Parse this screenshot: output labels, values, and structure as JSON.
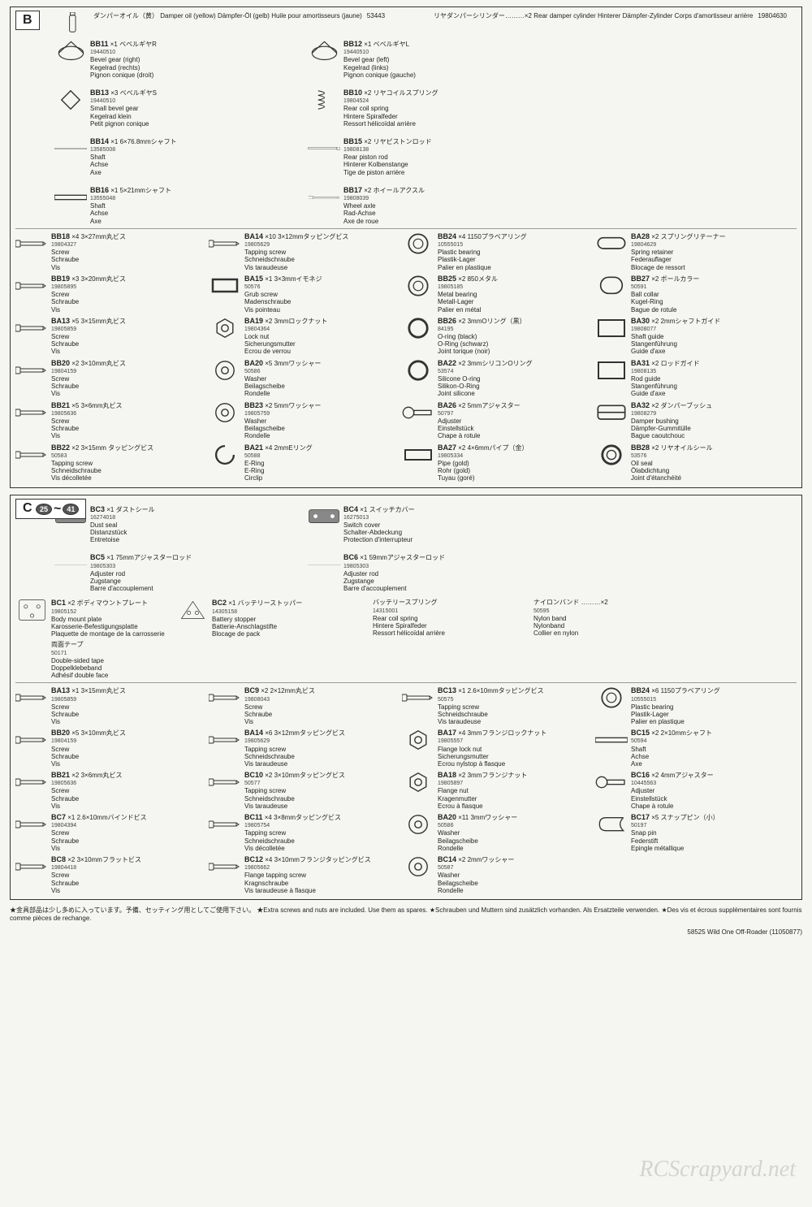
{
  "sectionB": {
    "label": "B",
    "header": {
      "oil": {
        "jp": "ダンパーオイル（黄）",
        "en": "Damper oil (yellow)",
        "de": "Dämpfer-Öl (gelb)",
        "fr": "Huile pour amortisseurs (jaune)",
        "num": "53443"
      },
      "cyl": {
        "jp": "リヤダンパーシリンダー………×2",
        "en": "Rear damper cylinder",
        "de": "Hinterer Dämpfer-Zylinder",
        "fr": "Corps d'amortisseur arrière",
        "num": "19804630"
      }
    },
    "top": [
      {
        "code": "BB11",
        "qty": "×1",
        "num": "19440510",
        "jp": "ベベルギヤR",
        "en": "Bevel gear (right)",
        "de": "Kegelrad (rechts)",
        "fr": "Pignon conique (droit)",
        "icon": "gear"
      },
      {
        "code": "BB12",
        "qty": "×1",
        "num": "19440510",
        "jp": "ベベルギヤL",
        "en": "Bevel gear (left)",
        "de": "Kegelrad (links)",
        "fr": "Pignon conique (gauche)",
        "icon": "gear"
      },
      {
        "code": "BB13",
        "qty": "×3",
        "num": "19440510",
        "jp": "ベベルギヤS",
        "en": "Small bevel gear",
        "de": "Kegelrad klein",
        "fr": "Petit pignon conique",
        "icon": "sgear"
      },
      {
        "code": "BB10",
        "qty": "×2",
        "num": "19804524",
        "jp": "リヤコイルスプリング",
        "en": "Rear coil spring",
        "de": "Hintere Spiralfeder",
        "fr": "Ressort hélicoïdal arrière",
        "icon": "spring"
      },
      {
        "code": "BB14",
        "qty": "×1",
        "num": "13585008",
        "jp": "6×76.8mmシャフト",
        "en": "Shaft",
        "de": "Achse",
        "fr": "Axe",
        "icon": "shaft"
      },
      {
        "code": "BB15",
        "qty": "×2",
        "num": "19808138",
        "jp": "リヤピストンロッド",
        "en": "Rear piston rod",
        "de": "Hinterer Kolbenstange",
        "fr": "Tige de piston arrière",
        "icon": "rod"
      },
      {
        "code": "BB16",
        "qty": "×1",
        "num": "13555048",
        "jp": "5×21mmシャフト",
        "en": "Shaft",
        "de": "Achse",
        "fr": "Axe",
        "icon": "sshaft"
      },
      {
        "code": "BB17",
        "qty": "×2",
        "num": "19808039",
        "jp": "ホイールアクスル",
        "en": "Wheel axle",
        "de": "Rad-Achse",
        "fr": "Axe de roue",
        "icon": "axle"
      }
    ],
    "rows": [
      {
        "code": "BB18",
        "qty": "×4",
        "num": "19804327",
        "jp": "3×27mm丸ビス",
        "en": "Screw",
        "de": "Schraube",
        "fr": "Vis",
        "icon": "screw"
      },
      {
        "code": "BA14",
        "qty": "×10",
        "num": "19805629",
        "jp": "3×12mmタッピングビス",
        "en": "Tapping screw",
        "de": "Schneidschraube",
        "fr": "Vis taraudeuse",
        "icon": "screw"
      },
      {
        "code": "BB24",
        "qty": "×4",
        "num": "10555015",
        "jp": "1150プラベアリング",
        "en": "Plastic bearing",
        "de": "Plastik-Lager",
        "fr": "Palier en plastique",
        "icon": "ring"
      },
      {
        "code": "BA28",
        "qty": "×2",
        "num": "19804629",
        "jp": "スプリングリテーナー",
        "en": "Spring retainer",
        "de": "Federauflager",
        "fr": "Blocage de ressort",
        "icon": "retainer"
      },
      {
        "code": "BB19",
        "qty": "×3",
        "num": "19805895",
        "jp": "3×20mm丸ビス",
        "en": "Screw",
        "de": "Schraube",
        "fr": "Vis",
        "icon": "screw"
      },
      {
        "code": "BA15",
        "qty": "×1",
        "num": "50576",
        "jp": "3×3mmイモネジ",
        "en": "Grub screw",
        "de": "Madenschraube",
        "fr": "Vis pointeau",
        "icon": "grub"
      },
      {
        "code": "BB25",
        "qty": "×2",
        "num": "19805185",
        "jp": "850メタル",
        "en": "Metal bearing",
        "de": "Metall-Lager",
        "fr": "Palier en métal",
        "icon": "ring"
      },
      {
        "code": "BB27",
        "qty": "×2",
        "num": "50591",
        "jp": "ボールカラー",
        "en": "Ball collar",
        "de": "Kugel-Ring",
        "fr": "Bague de rotule",
        "icon": "collar"
      },
      {
        "code": "BA13",
        "qty": "×5",
        "num": "19805859",
        "jp": "3×15mm丸ビス",
        "en": "Screw",
        "de": "Schraube",
        "fr": "Vis",
        "icon": "screw"
      },
      {
        "code": "BA19",
        "qty": "×2",
        "num": "19804364",
        "jp": "3mmロックナット",
        "en": "Lock nut",
        "de": "Sicherungsmutter",
        "fr": "Ecrou de verrou",
        "icon": "nut"
      },
      {
        "code": "BB26",
        "qty": "×2",
        "num": "84195",
        "jp": "3mmOリング（黒）",
        "en": "O-ring (black)",
        "de": "O-Ring (schwarz)",
        "fr": "Joint torique (noir)",
        "icon": "oring"
      },
      {
        "code": "BA30",
        "qty": "×2",
        "num": "19808077",
        "jp": "2mmシャフトガイド",
        "en": "Shaft guide",
        "de": "Stangenführung",
        "fr": "Guide d'axe",
        "icon": "guide"
      },
      {
        "code": "BB20",
        "qty": "×2",
        "num": "19804159",
        "jp": "3×10mm丸ビス",
        "en": "Screw",
        "de": "Schraube",
        "fr": "Vis",
        "icon": "screw"
      },
      {
        "code": "BA20",
        "qty": "×5",
        "num": "50586",
        "jp": "3mmワッシャー",
        "en": "Washer",
        "de": "Beilagscheibe",
        "fr": "Rondelle",
        "icon": "washer"
      },
      {
        "code": "BA22",
        "qty": "×2",
        "num": "53574",
        "jp": "3mmシリコンOリング",
        "en": "Silicone O-ring",
        "de": "Silikon-O-Ring",
        "fr": "Joint silicone",
        "icon": "oring"
      },
      {
        "code": "BA31",
        "qty": "×2",
        "num": "19808135",
        "jp": "ロッドガイド",
        "en": "Rod guide",
        "de": "Stangenführung",
        "fr": "Guide d'axe",
        "icon": "guide"
      },
      {
        "code": "BB21",
        "qty": "×5",
        "num": "19805636",
        "jp": "3×6mm丸ビス",
        "en": "Screw",
        "de": "Schraube",
        "fr": "Vis",
        "icon": "screw"
      },
      {
        "code": "BB23",
        "qty": "×2",
        "num": "19805759",
        "jp": "5mmワッシャー",
        "en": "Washer",
        "de": "Beilagscheibe",
        "fr": "Rondelle",
        "icon": "washer"
      },
      {
        "code": "BA26",
        "qty": "×2",
        "num": "50797",
        "jp": "5mmアジャスター",
        "en": "Adjuster",
        "de": "Einstellstück",
        "fr": "Chape à rotule",
        "icon": "adjuster"
      },
      {
        "code": "BA32",
        "qty": "×2",
        "num": "19808279",
        "jp": "ダンパーブッシュ",
        "en": "Damper bushing",
        "de": "Dämpfer-Gummitülle",
        "fr": "Bague caoutchouc",
        "icon": "bush"
      },
      {
        "code": "BB22",
        "qty": "×2",
        "num": "50583",
        "jp": "3×15mm タッピングビス",
        "en": "Tapping screw",
        "de": "Schneidschraube",
        "fr": "Vis décolletée",
        "icon": "screw"
      },
      {
        "code": "BA21",
        "qty": "×4",
        "num": "50588",
        "jp": "2mmEリング",
        "en": "E-Ring",
        "de": "E-Ring",
        "fr": "Circlip",
        "icon": "ering"
      },
      {
        "code": "BA27",
        "qty": "×2",
        "num": "19805334",
        "jp": "4×6mmパイプ（金）",
        "en": "Pipe (gold)",
        "de": "Rohr (gold)",
        "fr": "Tuyau (goré)",
        "icon": "pipe"
      },
      {
        "code": "BB28",
        "qty": "×2",
        "num": "53576",
        "jp": "リヤオイルシール",
        "en": "Oil seal",
        "de": "Ölabdichtung",
        "fr": "Joint d'étanchéité",
        "icon": "seal"
      }
    ]
  },
  "sectionC": {
    "label": "C",
    "steps": "25 ~ 41",
    "top": [
      {
        "code": "BC3",
        "qty": "×1",
        "num": "16274018",
        "jp": "ダストシール",
        "en": "Dust seal",
        "de": "Distanzstück",
        "fr": "Entretoise",
        "icon": "plate"
      },
      {
        "code": "BC4",
        "qty": "×1",
        "num": "16275013",
        "jp": "スイッチカバー",
        "en": "Switch cover",
        "de": "Schalter-Abdeckung",
        "fr": "Protection d'interrupteur",
        "icon": "plate"
      },
      {
        "code": "BC5",
        "qty": "×1",
        "num": "19805303",
        "jp": "75mmアジャスターロッド",
        "en": "Adjuster rod",
        "de": "Zugstange",
        "fr": "Barre d'accouplement",
        "icon": "longrod"
      },
      {
        "code": "BC6",
        "qty": "×1",
        "num": "19805303",
        "jp": "59mmアジャスターロッド",
        "en": "Adjuster rod",
        "de": "Zugstange",
        "fr": "Barre d'accouplement",
        "icon": "longrod"
      }
    ],
    "mid": [
      {
        "code": "BC1",
        "qty": "×2",
        "num": "19805152",
        "jp": "ボディマウントプレート",
        "en": "Body mount plate",
        "de": "Karosserie-Befestigungsplatte",
        "fr": "Plaquette de montage de la carrosserie",
        "icon": "bplate"
      },
      {
        "code": "BC2",
        "qty": "×1",
        "num": "14305158",
        "jp": "バッテリーストッパー",
        "en": "Battery stopper",
        "de": "Batterie-Anschlagstifte",
        "fr": "Blocage de pack",
        "icon": "bstopper"
      },
      {
        "jp": "バッテリースプリング",
        "en": "Rear coil spring",
        "de": "Hintere Spiralfeder",
        "fr": "Ressort hélicoïdal arrière",
        "num": "14315001",
        "icon": "none"
      },
      {
        "jp": "ナイロンバンド ………×2",
        "en": "Nylon band",
        "de": "Nylonband",
        "fr": "Collier en nylon",
        "num": "50595",
        "icon": "none"
      },
      {
        "jp": "両面テープ",
        "en": "Double-sided tape",
        "de": "Doppelklebeband",
        "fr": "Adhésif double face",
        "num": "50171",
        "icon": "none"
      }
    ],
    "rows": [
      {
        "code": "BA13",
        "qty": "×1",
        "num": "19805859",
        "jp": "3×15mm丸ビス",
        "en": "Screw",
        "de": "Schraube",
        "fr": "Vis",
        "icon": "screw"
      },
      {
        "code": "BC9",
        "qty": "×2",
        "num": "19808043",
        "jp": "2×12mm丸ビス",
        "en": "Screw",
        "de": "Schraube",
        "fr": "Vis",
        "icon": "screw"
      },
      {
        "code": "BC13",
        "qty": "×1",
        "num": "50575",
        "jp": "2.6×10mmタッピングビス",
        "en": "Tapping screw",
        "de": "Schneidschraube",
        "fr": "Vis taraudeuse",
        "icon": "screw"
      },
      {
        "code": "BB24",
        "qty": "×6",
        "num": "10555015",
        "jp": "1150プラベアリング",
        "en": "Plastic bearing",
        "de": "Plastik-Lager",
        "fr": "Palier en plastique",
        "icon": "ring"
      },
      {
        "code": "BB20",
        "qty": "×5",
        "num": "19804159",
        "jp": "3×10mm丸ビス",
        "en": "Screw",
        "de": "Schraube",
        "fr": "Vis",
        "icon": "screw"
      },
      {
        "code": "BA14",
        "qty": "×6",
        "num": "19805629",
        "jp": "3×12mmタッピングビス",
        "en": "Tapping screw",
        "de": "Schneidschraube",
        "fr": "Vis taraudeuse",
        "icon": "screw"
      },
      {
        "code": "BA17",
        "qty": "×4",
        "num": "19805557",
        "jp": "3mmフランジロックナット",
        "en": "Flange lock nut",
        "de": "Sicherungsmutter",
        "fr": "Ecrou nylstop à flasque",
        "icon": "nut"
      },
      {
        "code": "BC15",
        "qty": "×2",
        "num": "50594",
        "jp": "2×10mmシャフト",
        "en": "Shaft",
        "de": "Achse",
        "fr": "Axe",
        "icon": "sshaft"
      },
      {
        "code": "BB21",
        "qty": "×2",
        "num": "19805636",
        "jp": "3×6mm丸ビス",
        "en": "Screw",
        "de": "Schraube",
        "fr": "Vis",
        "icon": "screw"
      },
      {
        "code": "BC10",
        "qty": "×2",
        "num": "50577",
        "jp": "3×10mmタッピングビス",
        "en": "Tapping screw",
        "de": "Schneidschraube",
        "fr": "Vis taraudeuse",
        "icon": "screw"
      },
      {
        "code": "BA18",
        "qty": "×2",
        "num": "19805897",
        "jp": "3mmフランジナット",
        "en": "Flange nut",
        "de": "Kragenmutter",
        "fr": "Ecrou à flasque",
        "icon": "nut"
      },
      {
        "code": "BC16",
        "qty": "×2",
        "num": "10445563",
        "jp": "4mmアジャスター",
        "en": "Adjuster",
        "de": "Einstellstück",
        "fr": "Chape à rotule",
        "icon": "adjuster"
      },
      {
        "code": "BC7",
        "qty": "×1",
        "num": "19804394",
        "jp": "2.6×10mmバインドビス",
        "en": "Screw",
        "de": "Schraube",
        "fr": "Vis",
        "icon": "screw"
      },
      {
        "code": "BC11",
        "qty": "×4",
        "num": "19805754",
        "jp": "3×8mmタッピングビス",
        "en": "Tapping screw",
        "de": "Schneidschraube",
        "fr": "Vis décolletée",
        "icon": "screw"
      },
      {
        "code": "BA20",
        "qty": "×11",
        "num": "50586",
        "jp": "3mmワッシャー",
        "en": "Washer",
        "de": "Beilagscheibe",
        "fr": "Rondelle",
        "icon": "washer"
      },
      {
        "code": "BC17",
        "qty": "×5",
        "num": "50197",
        "jp": "スナップピン（小）",
        "en": "Snap pin",
        "de": "Federstift",
        "fr": "Epingle métallique",
        "icon": "pin"
      },
      {
        "code": "BC8",
        "qty": "×2",
        "num": "19804418",
        "jp": "3×10mmフラットビス",
        "en": "Screw",
        "de": "Schraube",
        "fr": "Vis",
        "icon": "screw"
      },
      {
        "code": "BC12",
        "qty": "×4",
        "num": "19805662",
        "jp": "3×10mmフランジタッピングビス",
        "en": "Flange tapping screw",
        "de": "Kragnschraube",
        "fr": "Vis taraudeuse à flasque",
        "icon": "screw"
      },
      {
        "code": "BC14",
        "qty": "×2",
        "num": "50587",
        "jp": "2mmワッシャー",
        "en": "Washer",
        "de": "Beilagscheibe",
        "fr": "Rondelle",
        "icon": "washer"
      }
    ]
  },
  "footnote": {
    "jp": "★金具部品は少し多めに入っています。予備、セッティング用としてご使用下さい。",
    "en": "★Extra screws and nuts are included. Use them as spares.",
    "de": "★Schrauben und Muttern sind zusätzlich vorhanden. Als Ersatzteile verwenden.",
    "fr": "★Des vis et écrous supplémentaires sont fournis comme pièces de rechange."
  },
  "footer": {
    "right": "58525  Wild One Off-Roader (11050877)"
  },
  "watermark": "RCScrapyard.net"
}
